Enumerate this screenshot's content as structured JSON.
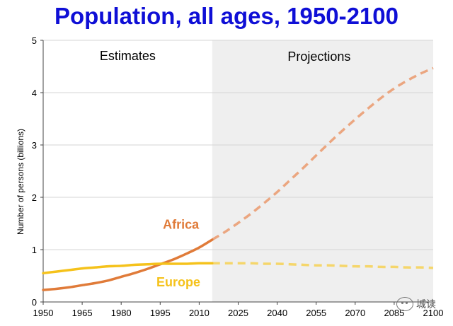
{
  "title": "Population, all ages, 1950-2100",
  "chart_data": {
    "type": "line",
    "title": "Population, all ages, 1950-2100",
    "ylabel": "Number of persons (billions)",
    "xlabel": "",
    "xlim": [
      1950,
      2100
    ],
    "ylim": [
      0,
      5
    ],
    "x_ticks": [
      "1950",
      "1965",
      "1980",
      "1995",
      "2010",
      "2025",
      "2040",
      "2055",
      "2070",
      "2085",
      "2100"
    ],
    "y_ticks": [
      "0",
      "1",
      "2",
      "3",
      "4",
      "5"
    ],
    "grid": true,
    "regions": {
      "estimates_label": "Estimates",
      "projections_label": "Projections",
      "split_year": 2015
    },
    "series": [
      {
        "name": "Africa",
        "color": "#e07b39",
        "projection_color": "#eba680",
        "x": [
          1950,
          1955,
          1960,
          1965,
          1970,
          1975,
          1980,
          1985,
          1990,
          1995,
          2000,
          2005,
          2010,
          2015,
          2020,
          2025,
          2030,
          2035,
          2040,
          2045,
          2050,
          2055,
          2060,
          2065,
          2070,
          2075,
          2080,
          2085,
          2090,
          2095,
          2100
        ],
        "y": [
          0.23,
          0.25,
          0.28,
          0.32,
          0.36,
          0.41,
          0.48,
          0.55,
          0.63,
          0.72,
          0.81,
          0.92,
          1.04,
          1.19,
          1.34,
          1.51,
          1.69,
          1.89,
          2.1,
          2.33,
          2.56,
          2.8,
          3.04,
          3.27,
          3.49,
          3.7,
          3.9,
          4.08,
          4.23,
          4.36,
          4.47
        ],
        "estimate_until": 2015
      },
      {
        "name": "Europe",
        "color": "#f5c21b",
        "projection_color": "#f5d66b",
        "x": [
          1950,
          1955,
          1960,
          1965,
          1970,
          1975,
          1980,
          1985,
          1990,
          1995,
          2000,
          2005,
          2010,
          2015,
          2020,
          2025,
          2030,
          2035,
          2040,
          2045,
          2050,
          2055,
          2060,
          2065,
          2070,
          2075,
          2080,
          2085,
          2090,
          2095,
          2100
        ],
        "y": [
          0.55,
          0.58,
          0.61,
          0.64,
          0.66,
          0.68,
          0.69,
          0.71,
          0.72,
          0.73,
          0.73,
          0.73,
          0.74,
          0.74,
          0.74,
          0.74,
          0.74,
          0.73,
          0.73,
          0.72,
          0.71,
          0.7,
          0.7,
          0.69,
          0.68,
          0.68,
          0.67,
          0.67,
          0.66,
          0.66,
          0.65
        ],
        "estimate_until": 2015
      }
    ]
  },
  "watermark": {
    "text": "城读",
    "icon": "chat-bubble-icon"
  }
}
